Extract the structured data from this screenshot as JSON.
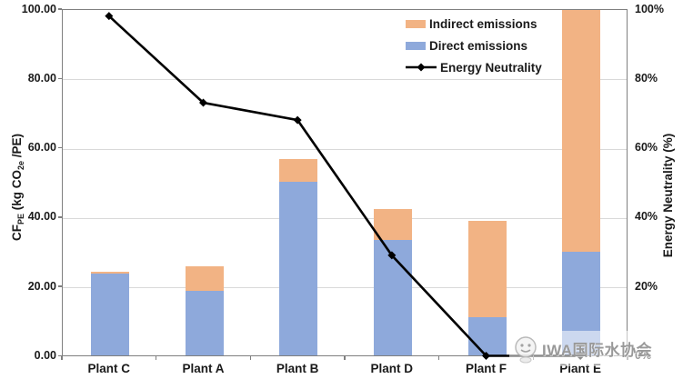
{
  "chart_data": {
    "type": "bar",
    "subtype": "stacked-bar-with-line-combo",
    "categories": [
      "Plant C",
      "Plant A",
      "Plant B",
      "Plant D",
      "Plant F",
      "Plant E"
    ],
    "series": [
      {
        "name": "Direct emissions",
        "type": "bar",
        "stack": "emissions",
        "color": "#8EA9DB",
        "axis": "left",
        "values": [
          23.5,
          18.6,
          50.2,
          33.2,
          10.9,
          30.0
        ]
      },
      {
        "name": "Indirect emissions",
        "type": "bar",
        "stack": "emissions",
        "color": "#F2B384",
        "axis": "left",
        "values": [
          0.5,
          7.2,
          6.4,
          9.1,
          28.0,
          70.0
        ],
        "note": "Plant E stacked total reaches/exceeds axis maximum; bar is clipped at 100"
      },
      {
        "name": "Energy Neutrality",
        "type": "line",
        "color": "#000000",
        "marker": "diamond",
        "axis": "right",
        "values": [
          98,
          73,
          68,
          29,
          0,
          0
        ]
      }
    ],
    "left_axis": {
      "title_text": "CF_PE (kg CO_2e /PE)",
      "title_parts": {
        "main1": "CF",
        "sub1": "PE",
        "main2": " (kg CO",
        "sub2": "2e",
        "main3": " /PE)"
      },
      "ticks": [
        "0.00",
        "20.00",
        "40.00",
        "60.00",
        "80.00",
        "100.00"
      ],
      "min": 0,
      "max": 100
    },
    "right_axis": {
      "title": "Energy Neutrality (%)",
      "ticks": [
        "0%",
        "20%",
        "40%",
        "60%",
        "80%",
        "100%"
      ],
      "min": 0,
      "max": 100
    },
    "legend": {
      "position": "inside-top-right",
      "items": [
        {
          "label": "Indirect emissions",
          "swatch": "orange-rect"
        },
        {
          "label": "Direct emissions",
          "swatch": "blue-rect"
        },
        {
          "label": "Energy Neutrality",
          "swatch": "black-line-diamond-marker"
        }
      ]
    },
    "grid": "horizontal-light-gray",
    "colors": {
      "grid": "#d9d9d9",
      "axis": "#7f7f7f",
      "line": "#000000"
    }
  },
  "watermark": {
    "text": "IWA国际水协会",
    "logo": "iwa-mascot-logo"
  }
}
